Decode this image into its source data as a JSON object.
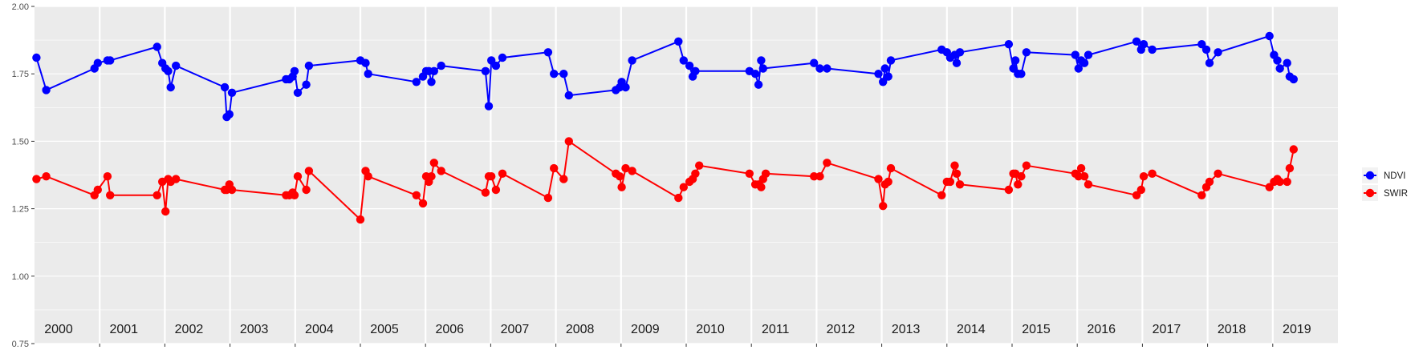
{
  "chart_data": {
    "type": "line",
    "title": "",
    "xlabel": "",
    "ylabel": "",
    "xlim": [
      2000,
      2020
    ],
    "ylim": [
      0.75,
      2.0
    ],
    "y_ticks": [
      "0.75",
      "1.00",
      "1.25",
      "1.50",
      "1.75",
      "2.00"
    ],
    "year_labels": [
      "2000",
      "2001",
      "2002",
      "2003",
      "2004",
      "2005",
      "2006",
      "2007",
      "2008",
      "2009",
      "2010",
      "2011",
      "2012",
      "2013",
      "2014",
      "2015",
      "2016",
      "2017",
      "2018",
      "2019"
    ],
    "grid": true,
    "legend_position": "right",
    "colors": {
      "panel": "#ebebeb",
      "grid": "#ffffff",
      "NDVI": "#0000ff",
      "SWIR": "#ff0000"
    },
    "series": [
      {
        "name": "NDVI",
        "color": "#0000ff",
        "points": [
          [
            0.03,
            1.81
          ],
          [
            0.18,
            1.69
          ],
          [
            0.92,
            1.77
          ],
          [
            0.97,
            1.79
          ],
          [
            1.12,
            1.8
          ],
          [
            1.16,
            1.8
          ],
          [
            1.88,
            1.85
          ],
          [
            1.96,
            1.79
          ],
          [
            2.01,
            1.77
          ],
          [
            2.05,
            1.76
          ],
          [
            2.09,
            1.7
          ],
          [
            2.17,
            1.78
          ],
          [
            2.92,
            1.7
          ],
          [
            2.95,
            1.59
          ],
          [
            2.99,
            1.6
          ],
          [
            3.03,
            1.68
          ],
          [
            3.86,
            1.73
          ],
          [
            3.91,
            1.73
          ],
          [
            3.96,
            1.74
          ],
          [
            3.99,
            1.76
          ],
          [
            4.04,
            1.68
          ],
          [
            4.17,
            1.71
          ],
          [
            4.21,
            1.78
          ],
          [
            5.0,
            1.8
          ],
          [
            5.08,
            1.79
          ],
          [
            5.12,
            1.75
          ],
          [
            5.86,
            1.72
          ],
          [
            5.96,
            1.74
          ],
          [
            6.01,
            1.76
          ],
          [
            6.05,
            1.76
          ],
          [
            6.09,
            1.72
          ],
          [
            6.13,
            1.76
          ],
          [
            6.24,
            1.78
          ],
          [
            6.92,
            1.76
          ],
          [
            6.97,
            1.63
          ],
          [
            7.01,
            1.8
          ],
          [
            7.08,
            1.78
          ],
          [
            7.18,
            1.81
          ],
          [
            7.88,
            1.83
          ],
          [
            7.97,
            1.75
          ],
          [
            8.12,
            1.75
          ],
          [
            8.2,
            1.67
          ],
          [
            8.92,
            1.69
          ],
          [
            8.98,
            1.7
          ],
          [
            9.01,
            1.72
          ],
          [
            9.07,
            1.7
          ],
          [
            9.17,
            1.8
          ],
          [
            9.88,
            1.87
          ],
          [
            9.96,
            1.8
          ],
          [
            10.05,
            1.78
          ],
          [
            10.1,
            1.74
          ],
          [
            10.14,
            1.76
          ],
          [
            10.97,
            1.76
          ],
          [
            11.06,
            1.75
          ],
          [
            11.11,
            1.71
          ],
          [
            11.15,
            1.8
          ],
          [
            11.18,
            1.77
          ],
          [
            11.96,
            1.79
          ],
          [
            12.05,
            1.77
          ],
          [
            12.16,
            1.77
          ],
          [
            12.95,
            1.75
          ],
          [
            13.02,
            1.72
          ],
          [
            13.05,
            1.77
          ],
          [
            13.1,
            1.74
          ],
          [
            13.14,
            1.8
          ],
          [
            13.92,
            1.84
          ],
          [
            14.0,
            1.83
          ],
          [
            14.05,
            1.81
          ],
          [
            14.12,
            1.82
          ],
          [
            14.15,
            1.79
          ],
          [
            14.2,
            1.83
          ],
          [
            14.95,
            1.86
          ],
          [
            15.02,
            1.77
          ],
          [
            15.05,
            1.8
          ],
          [
            15.09,
            1.75
          ],
          [
            15.14,
            1.75
          ],
          [
            15.22,
            1.83
          ],
          [
            15.97,
            1.82
          ],
          [
            16.02,
            1.77
          ],
          [
            16.06,
            1.8
          ],
          [
            16.11,
            1.79
          ],
          [
            16.17,
            1.82
          ],
          [
            16.91,
            1.87
          ],
          [
            16.98,
            1.84
          ],
          [
            17.02,
            1.86
          ],
          [
            17.15,
            1.84
          ],
          [
            17.91,
            1.86
          ],
          [
            17.98,
            1.84
          ],
          [
            18.03,
            1.79
          ],
          [
            18.16,
            1.83
          ],
          [
            18.95,
            1.89
          ],
          [
            19.02,
            1.82
          ],
          [
            19.07,
            1.8
          ],
          [
            19.11,
            1.77
          ],
          [
            19.22,
            1.79
          ],
          [
            19.26,
            1.74
          ],
          [
            19.32,
            1.73
          ]
        ]
      },
      {
        "name": "SWIR",
        "color": "#ff0000",
        "points": [
          [
            0.03,
            1.36
          ],
          [
            0.18,
            1.37
          ],
          [
            0.92,
            1.3
          ],
          [
            0.97,
            1.32
          ],
          [
            1.12,
            1.37
          ],
          [
            1.16,
            1.3
          ],
          [
            1.88,
            1.3
          ],
          [
            1.96,
            1.35
          ],
          [
            2.01,
            1.24
          ],
          [
            2.05,
            1.36
          ],
          [
            2.09,
            1.35
          ],
          [
            2.17,
            1.36
          ],
          [
            2.92,
            1.32
          ],
          [
            2.95,
            1.32
          ],
          [
            2.99,
            1.34
          ],
          [
            3.03,
            1.32
          ],
          [
            3.86,
            1.3
          ],
          [
            3.91,
            1.3
          ],
          [
            3.96,
            1.31
          ],
          [
            3.99,
            1.3
          ],
          [
            4.04,
            1.37
          ],
          [
            4.17,
            1.32
          ],
          [
            4.21,
            1.39
          ],
          [
            5.0,
            1.21
          ],
          [
            5.08,
            1.39
          ],
          [
            5.12,
            1.37
          ],
          [
            5.86,
            1.3
          ],
          [
            5.96,
            1.27
          ],
          [
            6.01,
            1.37
          ],
          [
            6.05,
            1.35
          ],
          [
            6.09,
            1.37
          ],
          [
            6.13,
            1.42
          ],
          [
            6.24,
            1.39
          ],
          [
            6.92,
            1.31
          ],
          [
            6.97,
            1.37
          ],
          [
            7.01,
            1.37
          ],
          [
            7.08,
            1.32
          ],
          [
            7.18,
            1.38
          ],
          [
            7.88,
            1.29
          ],
          [
            7.97,
            1.4
          ],
          [
            8.12,
            1.36
          ],
          [
            8.2,
            1.5
          ],
          [
            8.92,
            1.38
          ],
          [
            8.98,
            1.37
          ],
          [
            9.01,
            1.33
          ],
          [
            9.07,
            1.4
          ],
          [
            9.17,
            1.39
          ],
          [
            9.88,
            1.29
          ],
          [
            9.96,
            1.33
          ],
          [
            10.05,
            1.35
          ],
          [
            10.1,
            1.36
          ],
          [
            10.14,
            1.38
          ],
          [
            10.2,
            1.41
          ],
          [
            10.97,
            1.38
          ],
          [
            11.06,
            1.34
          ],
          [
            11.11,
            1.34
          ],
          [
            11.15,
            1.33
          ],
          [
            11.18,
            1.36
          ],
          [
            11.22,
            1.38
          ],
          [
            11.96,
            1.37
          ],
          [
            12.05,
            1.37
          ],
          [
            12.16,
            1.42
          ],
          [
            12.95,
            1.36
          ],
          [
            13.02,
            1.26
          ],
          [
            13.05,
            1.34
          ],
          [
            13.1,
            1.35
          ],
          [
            13.14,
            1.4
          ],
          [
            13.92,
            1.3
          ],
          [
            14.0,
            1.35
          ],
          [
            14.05,
            1.35
          ],
          [
            14.12,
            1.41
          ],
          [
            14.15,
            1.38
          ],
          [
            14.2,
            1.34
          ],
          [
            14.95,
            1.32
          ],
          [
            15.02,
            1.38
          ],
          [
            15.05,
            1.38
          ],
          [
            15.09,
            1.34
          ],
          [
            15.14,
            1.37
          ],
          [
            15.22,
            1.41
          ],
          [
            15.97,
            1.38
          ],
          [
            16.02,
            1.37
          ],
          [
            16.06,
            1.4
          ],
          [
            16.11,
            1.37
          ],
          [
            16.17,
            1.34
          ],
          [
            16.91,
            1.3
          ],
          [
            16.98,
            1.32
          ],
          [
            17.02,
            1.37
          ],
          [
            17.15,
            1.38
          ],
          [
            17.91,
            1.3
          ],
          [
            17.98,
            1.33
          ],
          [
            18.03,
            1.35
          ],
          [
            18.16,
            1.38
          ],
          [
            18.95,
            1.33
          ],
          [
            19.02,
            1.35
          ],
          [
            19.07,
            1.36
          ],
          [
            19.11,
            1.35
          ],
          [
            19.22,
            1.35
          ],
          [
            19.26,
            1.4
          ],
          [
            19.32,
            1.47
          ]
        ]
      }
    ]
  }
}
